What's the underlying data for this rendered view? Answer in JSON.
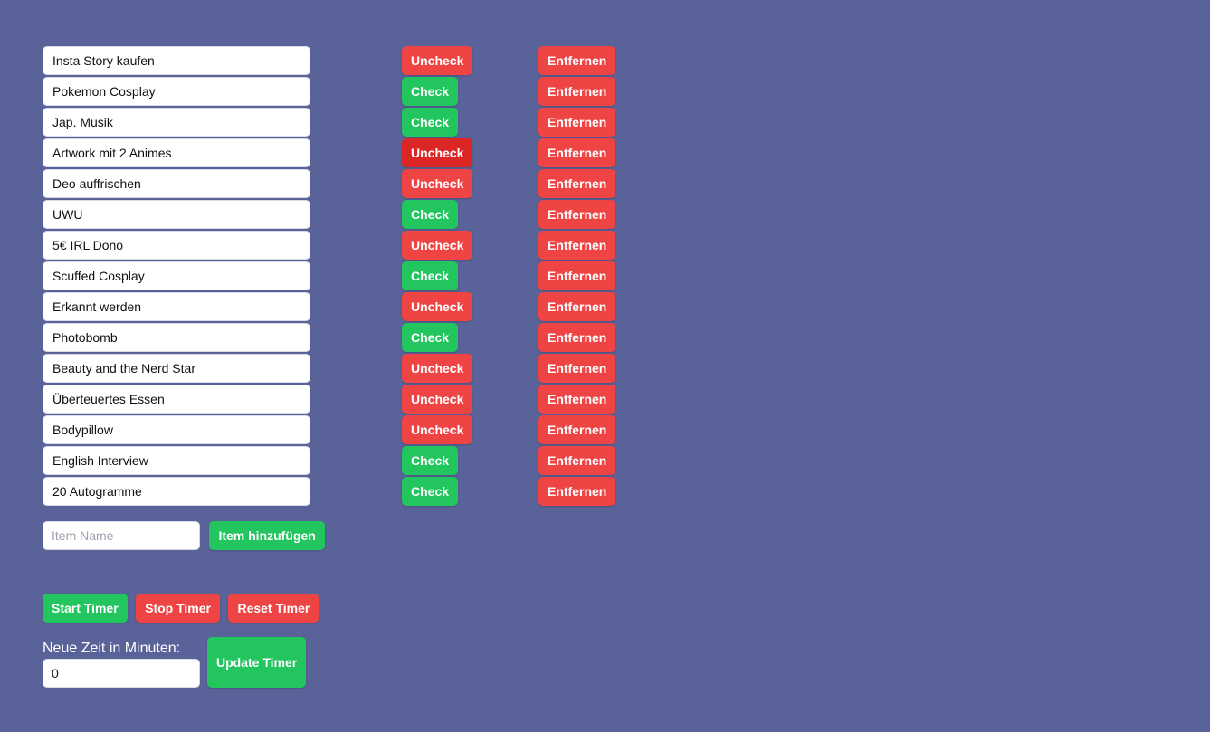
{
  "items": [
    {
      "name": "Insta Story kaufen",
      "toggle_label": "Uncheck",
      "toggle_color": "red",
      "remove_label": "Entfernen"
    },
    {
      "name": "Pokemon Cosplay",
      "toggle_label": "Check",
      "toggle_color": "green",
      "remove_label": "Entfernen"
    },
    {
      "name": "Jap. Musik",
      "toggle_label": "Check",
      "toggle_color": "green",
      "remove_label": "Entfernen"
    },
    {
      "name": "Artwork mit 2 Animes",
      "toggle_label": "Uncheck",
      "toggle_color": "dark-red",
      "remove_label": "Entfernen"
    },
    {
      "name": "Deo auffrischen",
      "toggle_label": "Uncheck",
      "toggle_color": "red",
      "remove_label": "Entfernen"
    },
    {
      "name": "UWU",
      "toggle_label": "Check",
      "toggle_color": "green",
      "remove_label": "Entfernen"
    },
    {
      "name": "5€ IRL Dono",
      "toggle_label": "Uncheck",
      "toggle_color": "red",
      "remove_label": "Entfernen"
    },
    {
      "name": "Scuffed Cosplay",
      "toggle_label": "Check",
      "toggle_color": "green",
      "remove_label": "Entfernen"
    },
    {
      "name": "Erkannt werden",
      "toggle_label": "Uncheck",
      "toggle_color": "red",
      "remove_label": "Entfernen"
    },
    {
      "name": "Photobomb",
      "toggle_label": "Check",
      "toggle_color": "green",
      "remove_label": "Entfernen"
    },
    {
      "name": "Beauty and the Nerd Star",
      "toggle_label": "Uncheck",
      "toggle_color": "red",
      "remove_label": "Entfernen"
    },
    {
      "name": "Überteuertes Essen",
      "toggle_label": "Uncheck",
      "toggle_color": "red",
      "remove_label": "Entfernen"
    },
    {
      "name": "Bodypillow",
      "toggle_label": "Uncheck",
      "toggle_color": "red",
      "remove_label": "Entfernen"
    },
    {
      "name": "English Interview",
      "toggle_label": "Check",
      "toggle_color": "green",
      "remove_label": "Entfernen"
    },
    {
      "name": "20 Autogramme",
      "toggle_label": "Check",
      "toggle_color": "green",
      "remove_label": "Entfernen"
    }
  ],
  "add_item": {
    "placeholder": "Item Name",
    "value": "",
    "button_label": "Item hinzufügen"
  },
  "timer": {
    "start_label": "Start Timer",
    "stop_label": "Stop Timer",
    "reset_label": "Reset Timer",
    "minutes_label": "Neue Zeit in Minuten:",
    "minutes_value": "0",
    "update_label": "Update Timer"
  },
  "colors": {
    "background": "#5a6399",
    "green": "#22c55e",
    "red": "#ef4444",
    "dark_red": "#dc2626"
  }
}
